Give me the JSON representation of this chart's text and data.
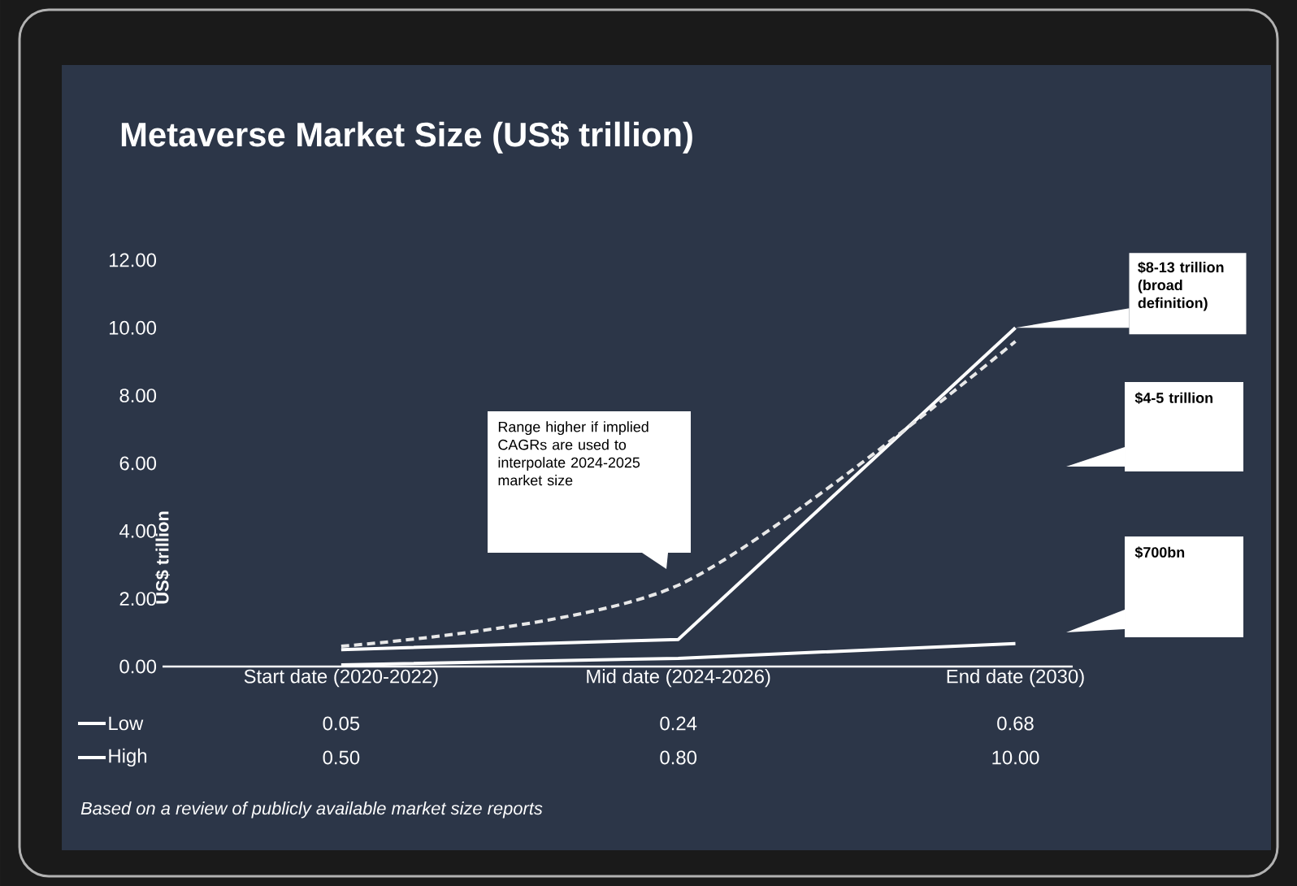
{
  "chart_data": {
    "type": "line",
    "title": "Metaverse Market Size (US$ trillion)",
    "ylabel": "US$ trillion",
    "categories": [
      "Start date (2020-2022)",
      "Mid date (2024-2026)",
      "End date (2030)"
    ],
    "series": [
      {
        "name": "Low",
        "color": "#ffffff",
        "values": [
          0.05,
          0.24,
          0.68
        ],
        "value_labels": [
          "0.05",
          "0.24",
          "0.68"
        ],
        "line_style": "solid"
      },
      {
        "name": "High",
        "color": "#ffffff",
        "values": [
          0.5,
          0.8,
          10.0
        ],
        "value_labels": [
          "0.50",
          "0.80",
          "10.00"
        ],
        "line_style": "solid"
      },
      {
        "color": "#e8e8e8",
        "values": [
          0.6,
          2.4,
          9.6
        ],
        "line_style": "dashed"
      }
    ],
    "ylim": [
      0,
      12
    ],
    "yticks": [
      {
        "value": 0,
        "label": "0.00"
      },
      {
        "value": 2,
        "label": "2.00"
      },
      {
        "value": 4,
        "label": "4.00"
      },
      {
        "value": 6,
        "label": "6.00"
      },
      {
        "value": 8,
        "label": "8.00"
      },
      {
        "value": 10,
        "label": "10.00"
      },
      {
        "value": 12,
        "label": "12.00"
      }
    ],
    "grid": false,
    "legend": "bottom left",
    "marker": "none",
    "annotations": [
      {
        "text": "$8-13 trillion (broad definition)",
        "x": "End date (2030)",
        "y": 10
      },
      "$4-5 trillion",
      "$700bn",
      "Range higher if implied CAGRs are used to interpolate 2024-2025 market size",
      "Based on a review of publicly available market size reports"
    ]
  }
}
